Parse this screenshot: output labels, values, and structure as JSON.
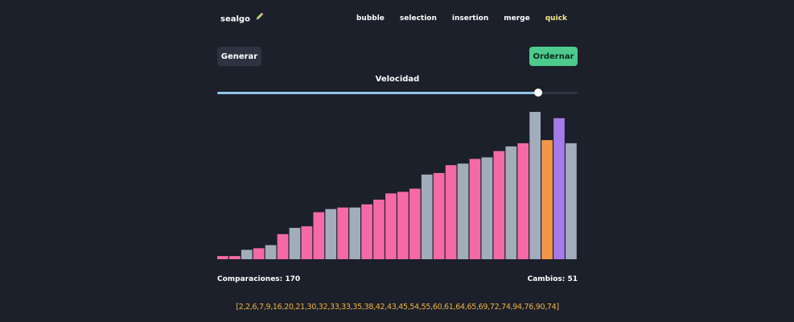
{
  "brand": {
    "name": "sealgo"
  },
  "nav": [
    {
      "label": "bubble",
      "active": false
    },
    {
      "label": "selection",
      "active": false
    },
    {
      "label": "insertion",
      "active": false
    },
    {
      "label": "merge",
      "active": false
    },
    {
      "label": "quick",
      "active": true
    }
  ],
  "buttons": {
    "generate": "Generar",
    "sort": "Ordernar"
  },
  "speed": {
    "label": "Velocidad",
    "value_fraction": 0.89
  },
  "stats": {
    "comparisons_label": "Comparaciones: 170",
    "swaps_label": "Cambios: 51"
  },
  "array_text": "[2,2,6,7,9,16,20,21,30,32,33,33,35,38,42,43,45,54,55,60,61,64,65,69,72,74,94,76,90,74]",
  "colors": {
    "background": "#1b202b",
    "accent_pink": "#f56aa6",
    "neutral_gray": "#a2adbb",
    "pivot_orange": "#f2964a",
    "compare_purple": "#a47be8",
    "active_nav": "#f4e98a",
    "sort_button": "#4ccb8c",
    "slider_fill": "#8fc5e8",
    "array_text": "#f2b13c"
  },
  "chart_data": {
    "type": "bar",
    "values": [
      2,
      2,
      6,
      7,
      9,
      16,
      20,
      21,
      30,
      32,
      33,
      33,
      35,
      38,
      42,
      43,
      45,
      54,
      55,
      60,
      61,
      64,
      65,
      69,
      72,
      74,
      94,
      76,
      90,
      74
    ],
    "bar_states": [
      "pink",
      "pink",
      "gray",
      "pink",
      "gray",
      "pink",
      "gray",
      "pink",
      "pink",
      "gray",
      "pink",
      "gray",
      "pink",
      "pink",
      "pink",
      "pink",
      "pink",
      "gray",
      "pink",
      "pink",
      "gray",
      "pink",
      "gray",
      "pink",
      "gray",
      "pink",
      "gray",
      "orange",
      "purple",
      "gray"
    ],
    "ylim": [
      0,
      94
    ]
  }
}
